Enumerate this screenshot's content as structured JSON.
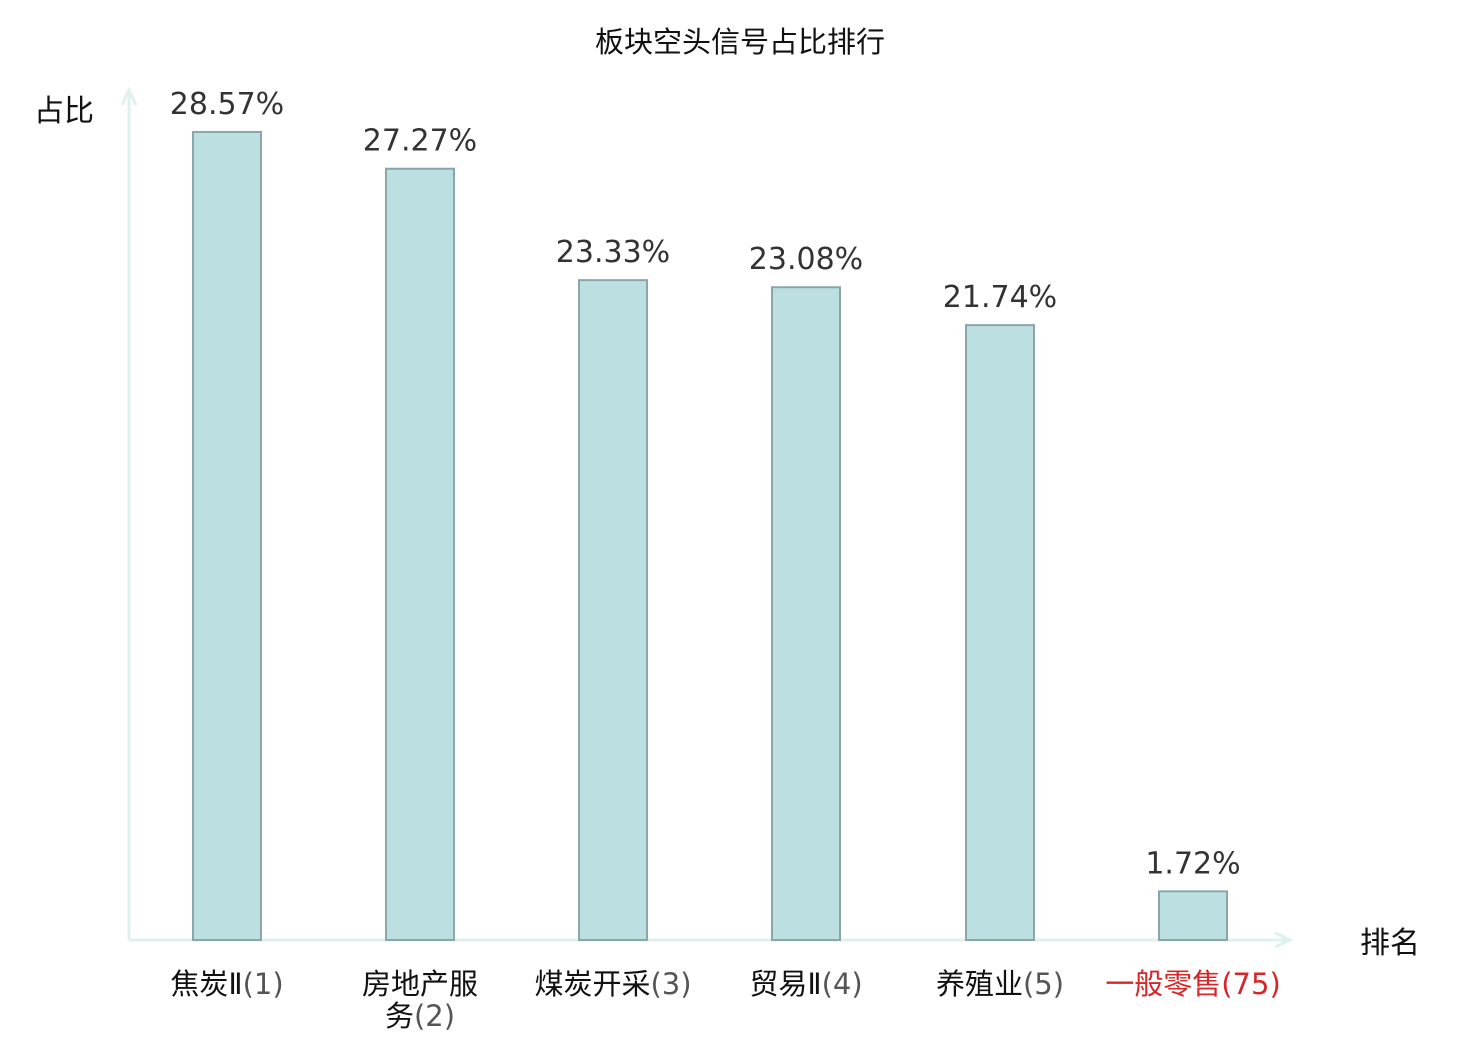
{
  "chart_data": {
    "type": "bar",
    "title": "板块空头信号占比排行",
    "ylabel": "占比",
    "xlabel": "排名",
    "categories": [
      {
        "name": "焦炭Ⅱ",
        "rank": "(1)"
      },
      {
        "name": "房地产服务",
        "rank": "(2)"
      },
      {
        "name": "煤炭开采",
        "rank": "(3)"
      },
      {
        "name": "贸易Ⅱ",
        "rank": "(4)"
      },
      {
        "name": "养殖业",
        "rank": "(5)"
      },
      {
        "name": "一般零售",
        "rank": "(75)"
      }
    ],
    "values": [
      28.57,
      27.27,
      23.33,
      23.08,
      21.74,
      1.72
    ],
    "value_labels": [
      "28.57%",
      "27.27%",
      "23.33%",
      "23.08%",
      "21.74%",
      "1.72%"
    ],
    "highlight_index": 5,
    "ylim": [
      0,
      29.7
    ],
    "grid": false,
    "legend": "none",
    "colors": {
      "bar_fill": "#bce0e2",
      "bar_stroke": "#8aa6a8",
      "axis": "#dff1ee",
      "highlight": "#d62728"
    }
  }
}
